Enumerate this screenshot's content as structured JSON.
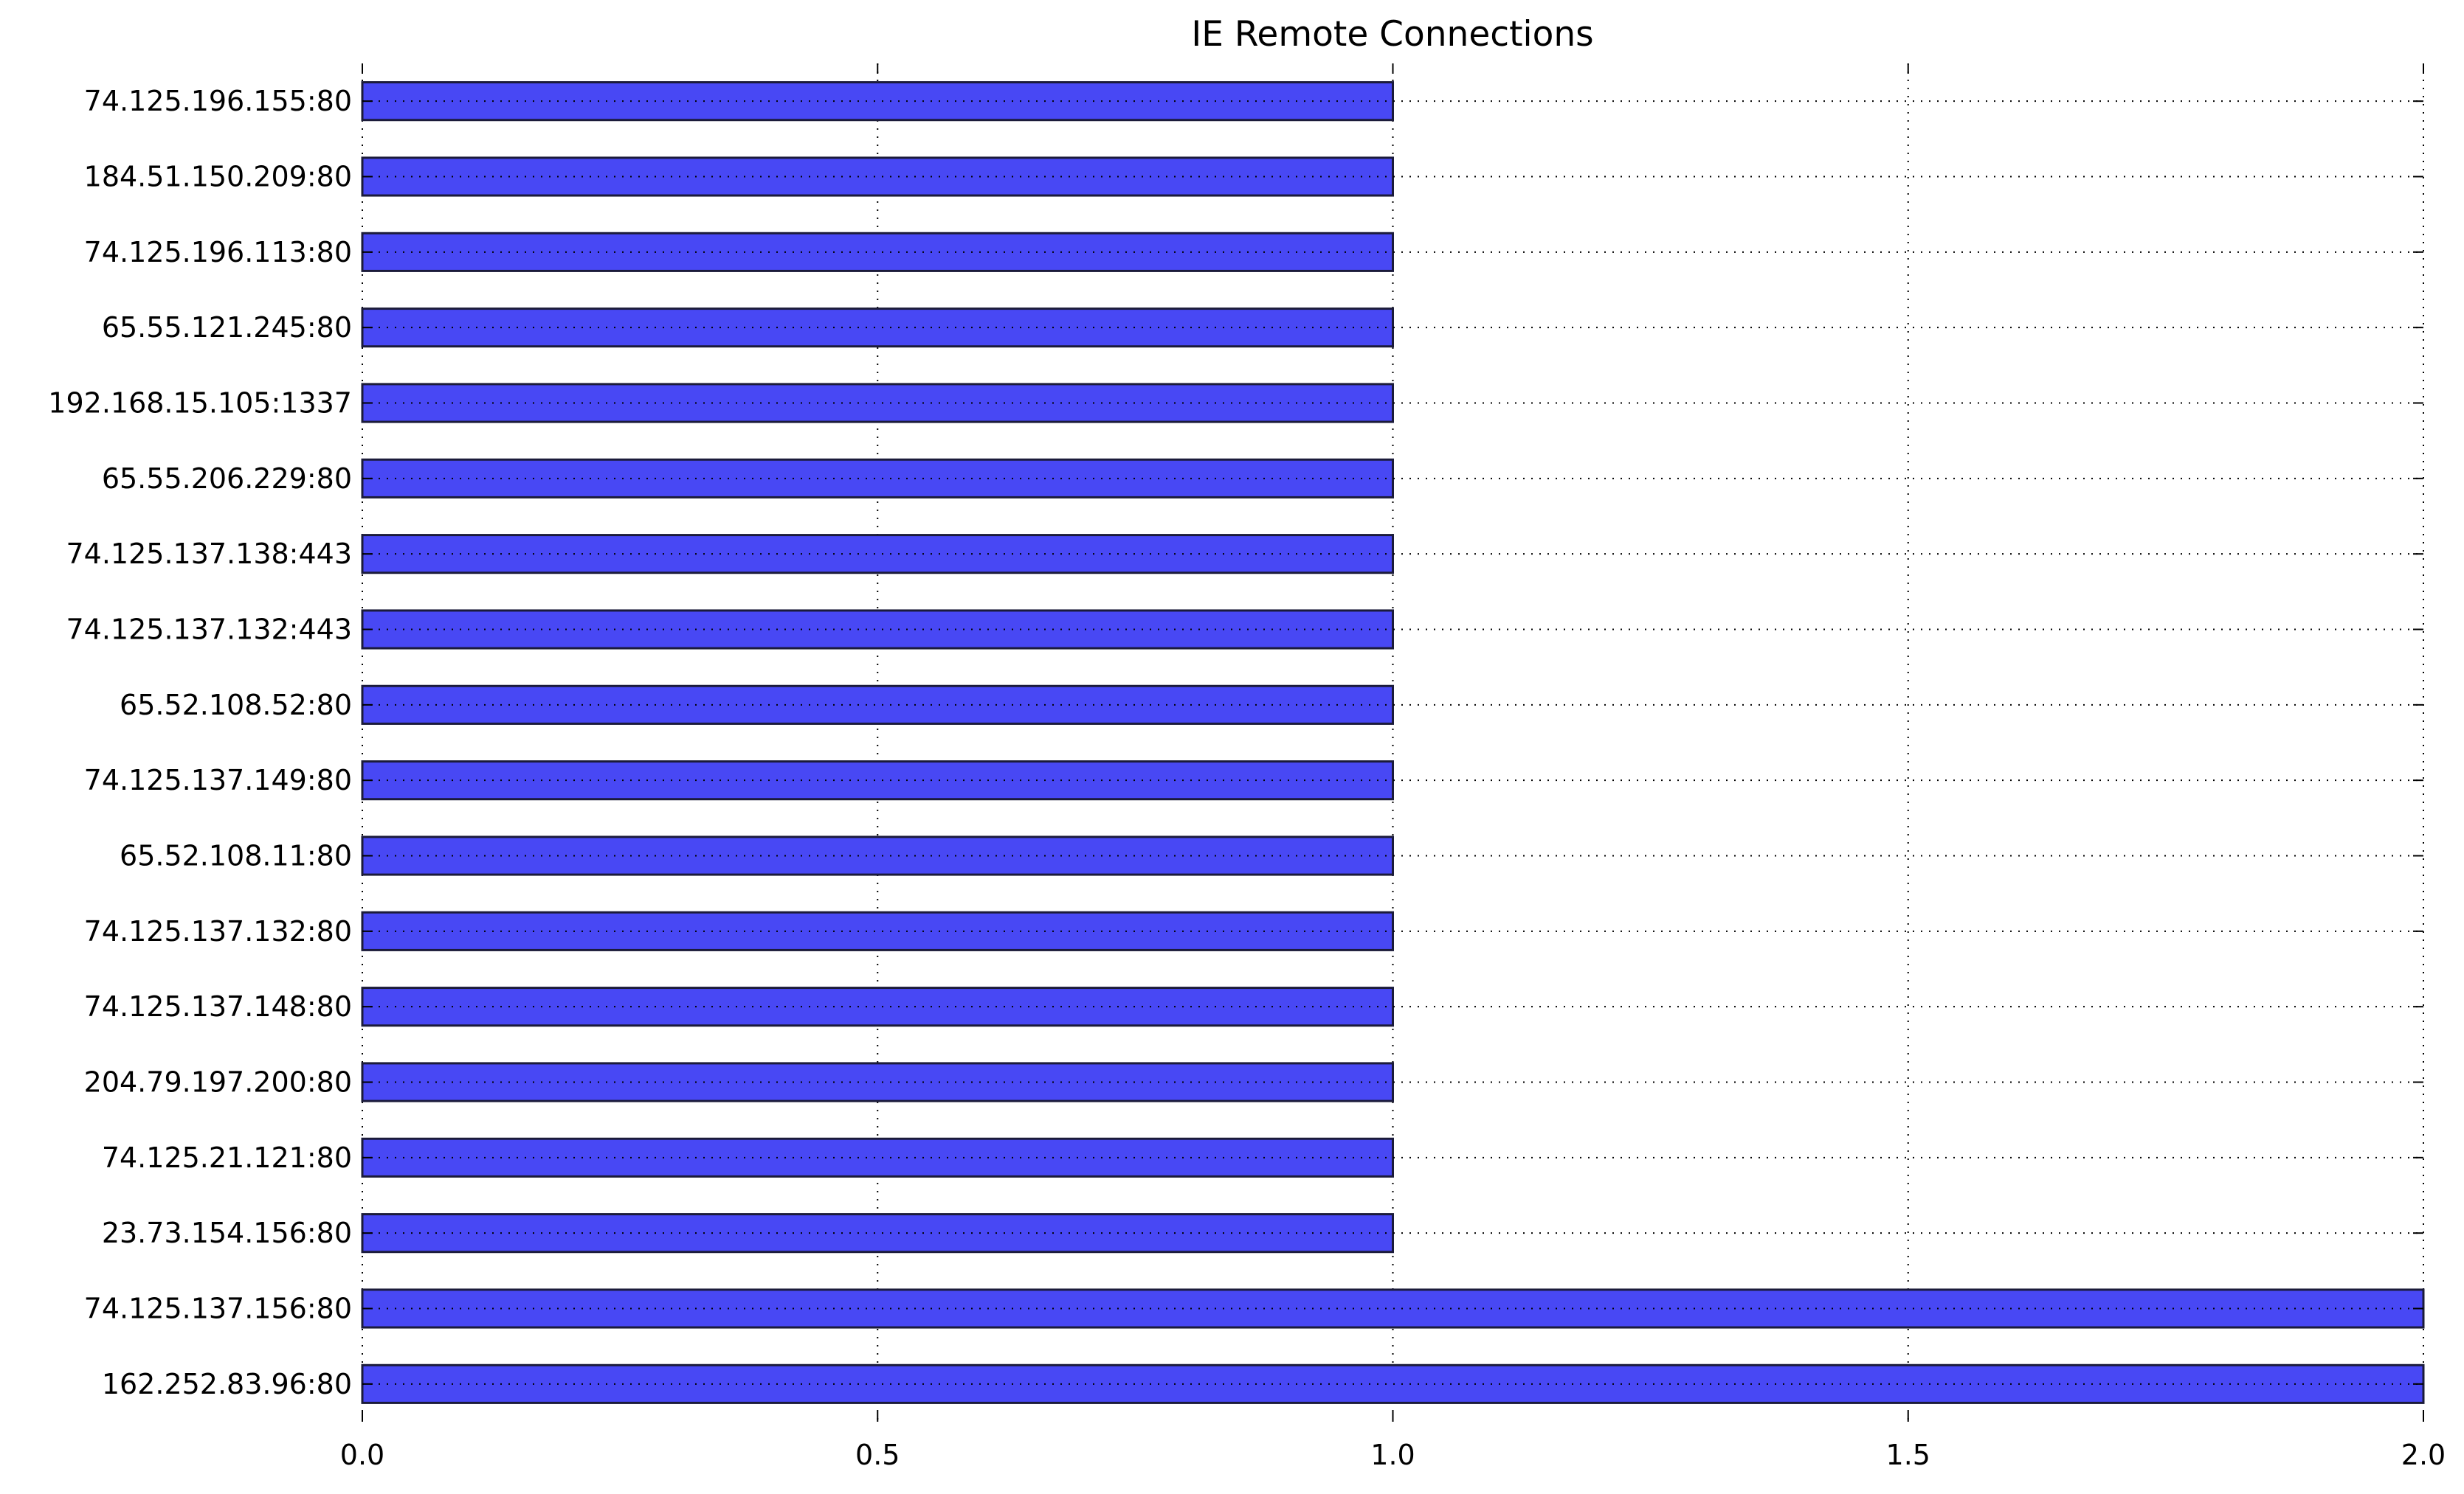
{
  "chart_data": {
    "type": "bar",
    "orientation": "horizontal",
    "title": "IE Remote Connections",
    "xlabel": "",
    "ylabel": "",
    "categories": [
      "162.252.83.96:80",
      "74.125.137.156:80",
      "23.73.154.156:80",
      "74.125.21.121:80",
      "204.79.197.200:80",
      "74.125.137.148:80",
      "74.125.137.132:80",
      "65.52.108.11:80",
      "74.125.137.149:80",
      "65.52.108.52:80",
      "74.125.137.132:443",
      "74.125.137.138:443",
      "65.55.206.229:80",
      "192.168.15.105:1337",
      "65.55.121.245:80",
      "74.125.196.113:80",
      "184.51.150.209:80",
      "74.125.196.155:80"
    ],
    "values": [
      2,
      2,
      1,
      1,
      1,
      1,
      1,
      1,
      1,
      1,
      1,
      1,
      1,
      1,
      1,
      1,
      1,
      1
    ],
    "xlim": [
      0,
      2
    ],
    "xticks": [
      0,
      0.5,
      1,
      1.5,
      2
    ],
    "xtick_labels": [
      "0.0",
      "0.5",
      "1.0",
      "1.5",
      "2.0"
    ],
    "grid": true,
    "bar_color": "#4848f4",
    "legend": null
  }
}
